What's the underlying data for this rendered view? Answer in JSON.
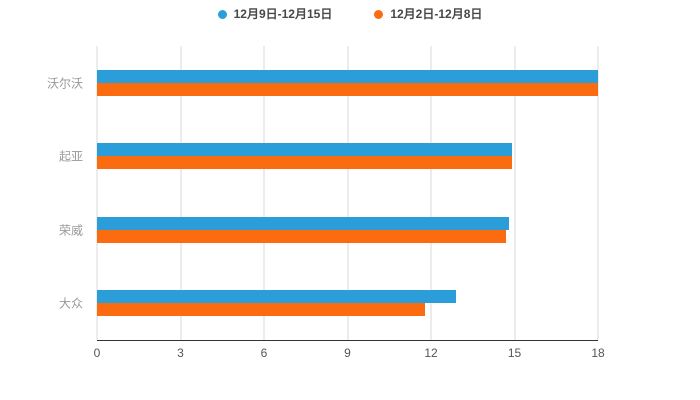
{
  "legend": {
    "items": [
      {
        "label": "12月9日-12月15日",
        "color": "#2B9DD8"
      },
      {
        "label": "12月2日-12月8日",
        "color": "#FB6C11"
      }
    ]
  },
  "chart_data": {
    "type": "bar",
    "orientation": "horizontal",
    "title": "",
    "xlabel": "",
    "ylabel": "",
    "categories": [
      "沃尔沃",
      "起亚",
      "荣威",
      "大众"
    ],
    "series": [
      {
        "name": "12月9日-12月15日",
        "color": "#2B9DD8",
        "values": [
          18,
          14.9,
          14.8,
          12.9
        ]
      },
      {
        "name": "12月2日-12月8日",
        "color": "#FB6C11",
        "values": [
          18,
          14.9,
          14.7,
          11.8
        ]
      }
    ],
    "xlim": [
      0,
      18
    ],
    "xticks": [
      0,
      3,
      6,
      9,
      12,
      15,
      18
    ],
    "grid": true,
    "legend_position": "top",
    "background": "#ffffff",
    "gridline_color": "#d9d9d9",
    "axis_line_color": "#333333",
    "category_label_color": "#999999",
    "tick_label_color": "#555555"
  }
}
